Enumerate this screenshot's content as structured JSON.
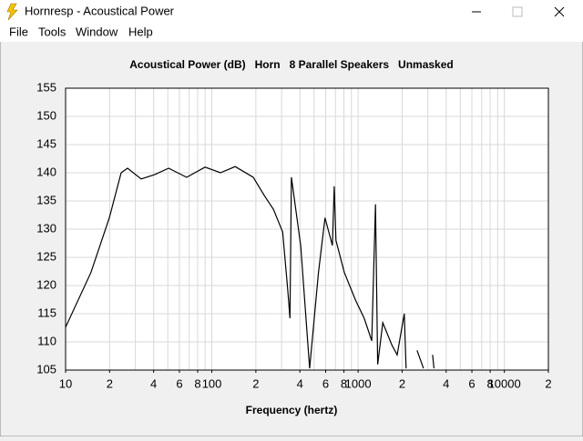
{
  "window": {
    "title": "Hornresp - Acoustical Power",
    "menu": [
      "File",
      "Tools",
      "Window",
      "Help"
    ]
  },
  "chart_data": {
    "type": "line",
    "title": "Acoustical Power (dB)   Horn   8 Parallel Speakers   Unmasked",
    "xlabel": "Frequency (hertz)",
    "xscale": "log",
    "xlim": [
      10,
      20000
    ],
    "ylim": [
      105,
      155
    ],
    "yticks": [
      105,
      110,
      115,
      120,
      125,
      130,
      135,
      140,
      145,
      150,
      155
    ],
    "xticks": [
      10,
      {
        "value": 20,
        "label": "2"
      },
      {
        "value": 40,
        "label": "4"
      },
      {
        "value": 60,
        "label": "6"
      },
      {
        "value": 80,
        "label": "8"
      },
      100,
      {
        "value": 200,
        "label": "2"
      },
      {
        "value": 400,
        "label": "4"
      },
      {
        "value": 600,
        "label": "6"
      },
      {
        "value": 800,
        "label": "8"
      },
      1000,
      {
        "value": 2000,
        "label": "2"
      },
      {
        "value": 4000,
        "label": "4"
      },
      {
        "value": 6000,
        "label": "6"
      },
      {
        "value": 8000,
        "label": "8"
      },
      10000,
      {
        "value": 20000,
        "label": "2"
      }
    ],
    "xgrid": [
      20,
      30,
      40,
      50,
      60,
      70,
      80,
      90,
      100,
      200,
      300,
      400,
      500,
      600,
      700,
      800,
      900,
      1000,
      2000,
      3000,
      4000,
      5000,
      6000,
      7000,
      8000,
      9000,
      10000
    ],
    "grid": true,
    "color": "#000000",
    "x": [
      10,
      14.9,
      19.9,
      24,
      26.5,
      32.9,
      40.8,
      50.6,
      67.3,
      89.9,
      114.5,
      144.5,
      192,
      228,
      264,
      305,
      331,
      342,
      350,
      405,
      466,
      536,
      594,
      667,
      687,
      706,
      805,
      961,
      1100,
      1240,
      1314,
      1360,
      1474,
      1705,
      1850,
      2070,
      2130,
      2300,
      2530,
      2800,
      3000,
      3230,
      3300,
      3500,
      3780
    ],
    "values": [
      112.6,
      122.3,
      132,
      140,
      140.8,
      138.9,
      139.7,
      140.8,
      139.2,
      141,
      140,
      141.1,
      139.2,
      136,
      133.5,
      129.5,
      119,
      114.2,
      139.2,
      127.1,
      105.3,
      122.3,
      132,
      127.1,
      137.6,
      128,
      122.3,
      117.4,
      114.2,
      110.2,
      134.4,
      106,
      113.4,
      109.4,
      107.7,
      115,
      105.3,
      null,
      108.5,
      105.3,
      null,
      107.7,
      105.3,
      null,
      105.3
    ]
  }
}
